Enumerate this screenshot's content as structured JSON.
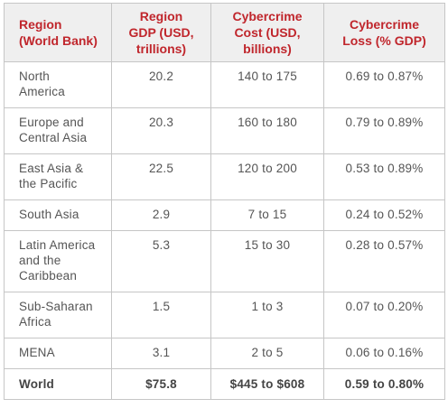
{
  "table": {
    "headers": [
      "Region\n(World Bank)",
      "Region\nGDP (USD,\ntrillions)",
      "Cybercrime\nCost (USD,\nbillions)",
      "Cybercrime\nLoss (% GDP)"
    ],
    "rows": [
      [
        "North\nAmerica",
        "20.2",
        "140 to 175",
        "0.69 to 0.87%"
      ],
      [
        "Europe and\nCentral Asia",
        "20.3",
        "160 to 180",
        "0.79 to 0.89%"
      ],
      [
        "East Asia &\nthe Pacific",
        "22.5",
        "120 to 200",
        "0.53 to 0.89%"
      ],
      [
        "South Asia",
        "2.9",
        "7 to 15",
        "0.24 to 0.52%"
      ],
      [
        "Latin America\nand the\nCaribbean",
        "5.3",
        "15 to 30",
        "0.28 to 0.57%"
      ],
      [
        "Sub-Saharan\nAfrica",
        "1.5",
        "1 to 3",
        "0.07 to 0.20%"
      ],
      [
        "MENA",
        "3.1",
        "2 to 5",
        "0.06 to 0.16%"
      ]
    ],
    "total": [
      "World",
      "$75.8",
      "$445 to $608",
      "0.59 to 0.80%"
    ]
  },
  "colors": {
    "header_text": "#c0262c",
    "header_bg": "#efefef",
    "body_text": "#555555",
    "border": "#c6c6c6"
  }
}
